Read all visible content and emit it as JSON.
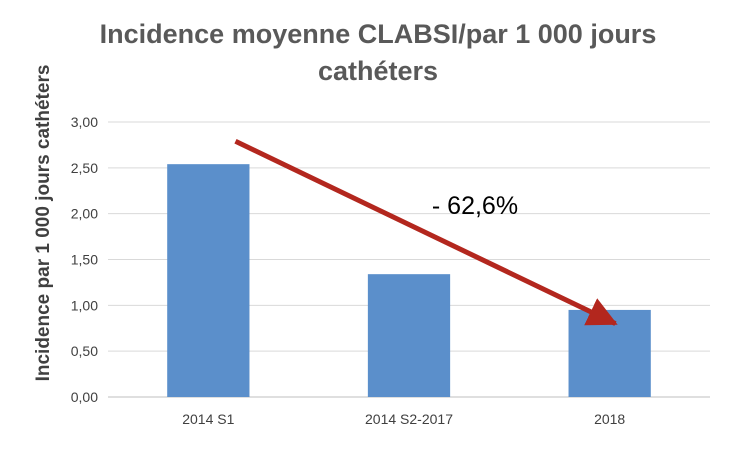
{
  "chart_data": {
    "type": "bar",
    "title_line1": "Incidence moyenne CLABSI/par 1 000 jours",
    "title_line2": "cathéters",
    "xlabel": "",
    "ylabel": "Incidence par 1 000 jours cathéters",
    "categories": [
      "2014 S1",
      "2014 S2-2017",
      "2018"
    ],
    "values": [
      2.54,
      1.34,
      0.95
    ],
    "ylim": [
      0,
      3
    ],
    "yticks": [
      "0,00",
      "0,50",
      "1,00",
      "1,50",
      "2,00",
      "2,50",
      "3,00"
    ],
    "grid": true,
    "bar_color": "#5B8FCB",
    "annotation": {
      "text": "- 62,6%",
      "arrow_color": "#B3271E",
      "arrow_from": {
        "category": "2014 S1",
        "value": 2.79
      },
      "arrow_to": {
        "category": "2018",
        "value": 0.8
      }
    }
  }
}
